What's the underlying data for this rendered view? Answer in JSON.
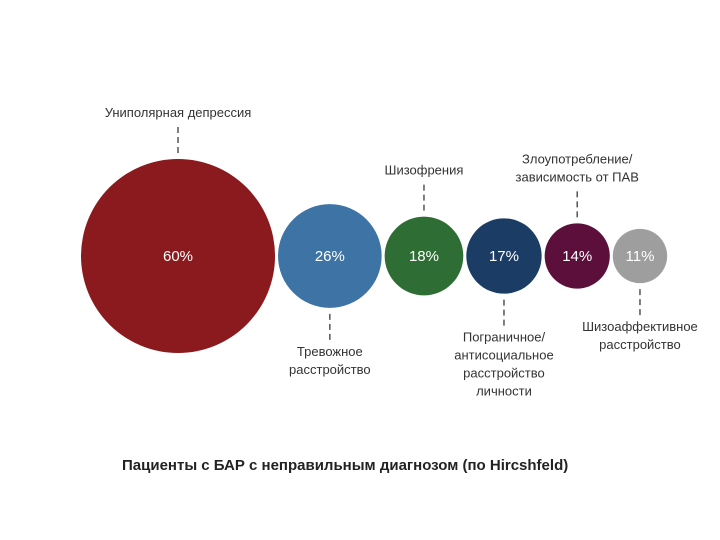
{
  "chart_data": {
    "type": "bubble",
    "title": "Пациенты с БАР с неправильным диагнозом (по Hircshfeld)",
    "categories": [
      [
        "Униполярная депрессия"
      ],
      [
        "Тревожное",
        "расстройство"
      ],
      [
        "Шизофрения"
      ],
      [
        "Пограничное/",
        "антисоциальное",
        "расстройство",
        "личности"
      ],
      [
        "Злоупотребление/",
        "зависимость от ПАВ"
      ],
      [
        "Шизоаффективное",
        "расстройство"
      ]
    ],
    "values": [
      60,
      26,
      18,
      17,
      14,
      11
    ],
    "value_labels": [
      "60%",
      "26%",
      "18%",
      "17%",
      "14%",
      "11%"
    ],
    "colors": [
      "#8b1a1e",
      "#3d74a5",
      "#2e6e35",
      "#1b3c64",
      "#5c0f3a",
      "#9e9e9e"
    ]
  }
}
